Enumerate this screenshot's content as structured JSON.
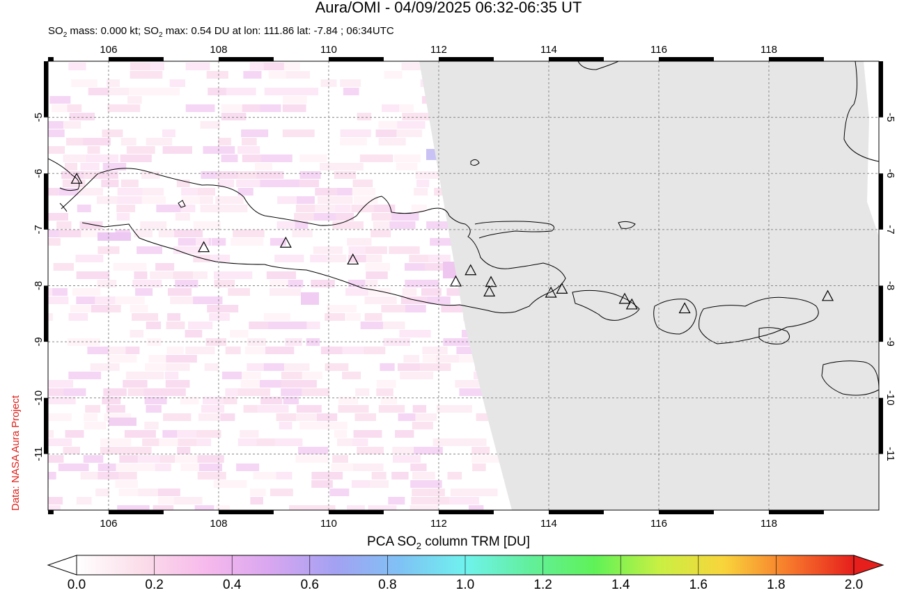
{
  "title": "Aura/OMI - 04/09/2025 06:32-06:35 UT",
  "subtitle": {
    "so2_mass": "0.000 kt",
    "so2_max": "0.54 DU",
    "lon": "111.86",
    "lat": "-7.84",
    "time": "06:34UTC"
  },
  "credit": "Data: NASA Aura Project",
  "map": {
    "lon_range": [
      104.9,
      120.0
    ],
    "lat_range": [
      -12.0,
      -4.0
    ],
    "lon_ticks": [
      "106",
      "108",
      "110",
      "112",
      "114",
      "116",
      "118"
    ],
    "lat_ticks": [
      "-5",
      "-6",
      "-7",
      "-8",
      "-9",
      "-10",
      "-11"
    ],
    "grid": true,
    "no_data_color": "#e6e6e6",
    "volcanoes": [
      {
        "lon": 105.42,
        "lat": -6.1
      },
      {
        "lon": 107.73,
        "lat": -7.32
      },
      {
        "lon": 109.22,
        "lat": -7.24
      },
      {
        "lon": 110.44,
        "lat": -7.54
      },
      {
        "lon": 112.31,
        "lat": -7.93
      },
      {
        "lon": 112.58,
        "lat": -7.73
      },
      {
        "lon": 112.95,
        "lat": -7.94
      },
      {
        "lon": 112.92,
        "lat": -8.11
      },
      {
        "lon": 114.04,
        "lat": -8.13
      },
      {
        "lon": 114.24,
        "lat": -8.06
      },
      {
        "lon": 115.38,
        "lat": -8.24
      },
      {
        "lon": 115.51,
        "lat": -8.34
      },
      {
        "lon": 116.47,
        "lat": -8.41
      },
      {
        "lon": 119.07,
        "lat": -8.19
      }
    ]
  },
  "colorbar": {
    "title_prefix": "PCA SO",
    "title_sub": "2",
    "title_suffix": " column TRM [DU]",
    "labels": [
      "0.0",
      "0.2",
      "0.4",
      "0.6",
      "0.8",
      "1.0",
      "1.2",
      "1.4",
      "1.6",
      "1.8",
      "2.0"
    ],
    "stops": [
      "#ffffff",
      "#fbdde9",
      "#f7b9ec",
      "#d8a6f0",
      "#a3a1f2",
      "#7fc2f5",
      "#6ff2ee",
      "#62ef9c",
      "#5ff257",
      "#c9f043",
      "#f9d43b",
      "#f7792c",
      "#e61e1c"
    ]
  }
}
